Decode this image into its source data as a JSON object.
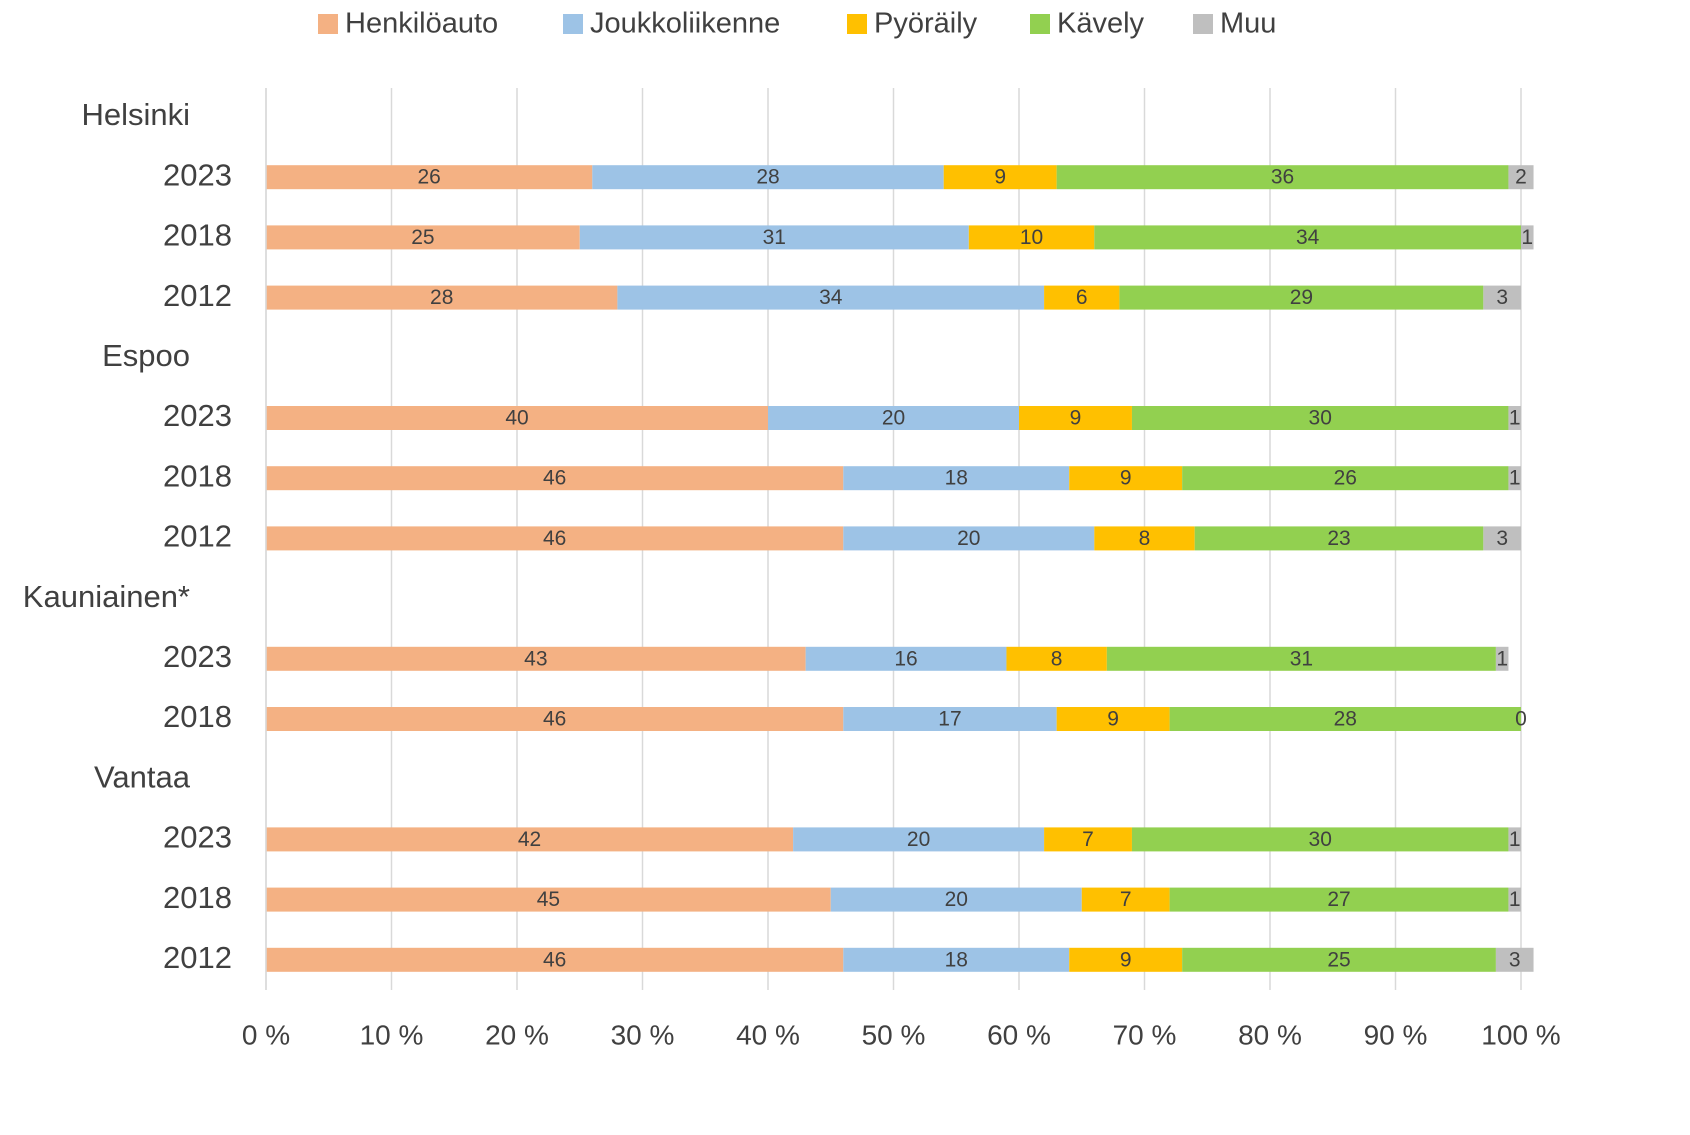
{
  "chart_data": {
    "type": "stacked_bar_horizontal",
    "categories": [
      "Helsinki",
      "2023",
      "2018",
      "2012",
      "Espoo",
      "2023",
      "2018",
      "2012",
      "Kauniainen*",
      "2023",
      "2018",
      "Vantaa",
      "2023",
      "2018",
      "2012"
    ],
    "series": [
      {
        "name": "Henkilöauto",
        "color": "#f4b183",
        "values": [
          null,
          26,
          25,
          28,
          null,
          40,
          46,
          46,
          null,
          43,
          46,
          null,
          42,
          45,
          46
        ]
      },
      {
        "name": "Joukkoliikenne",
        "color": "#9dc3e6",
        "values": [
          null,
          28,
          31,
          34,
          null,
          20,
          18,
          20,
          null,
          16,
          17,
          null,
          20,
          20,
          18
        ]
      },
      {
        "name": "Pyöräily",
        "color": "#ffc000",
        "values": [
          null,
          9,
          10,
          6,
          null,
          9,
          9,
          8,
          null,
          8,
          9,
          null,
          7,
          7,
          9
        ]
      },
      {
        "name": "Kävely",
        "color": "#92d050",
        "values": [
          null,
          36,
          34,
          29,
          null,
          30,
          26,
          23,
          null,
          31,
          28,
          null,
          30,
          27,
          25
        ]
      },
      {
        "name": "Muu",
        "color": "#bfbfbf",
        "values": [
          null,
          2,
          1,
          3,
          null,
          1,
          1,
          3,
          null,
          1,
          0,
          null,
          1,
          1,
          3
        ]
      }
    ],
    "xlim": [
      0,
      100
    ],
    "xticks": [
      {
        "value": 0,
        "label": "0 %"
      },
      {
        "value": 10,
        "label": "10 %"
      },
      {
        "value": 20,
        "label": "20 %"
      },
      {
        "value": 30,
        "label": "30 %"
      },
      {
        "value": 40,
        "label": "40 %"
      },
      {
        "value": 50,
        "label": "50 %"
      },
      {
        "value": 60,
        "label": "60 %"
      },
      {
        "value": 70,
        "label": "70 %"
      },
      {
        "value": 80,
        "label": "80 %"
      },
      {
        "value": 90,
        "label": "90 %"
      },
      {
        "value": 100,
        "label": "100 %"
      }
    ],
    "grid": true,
    "legend": "top"
  }
}
